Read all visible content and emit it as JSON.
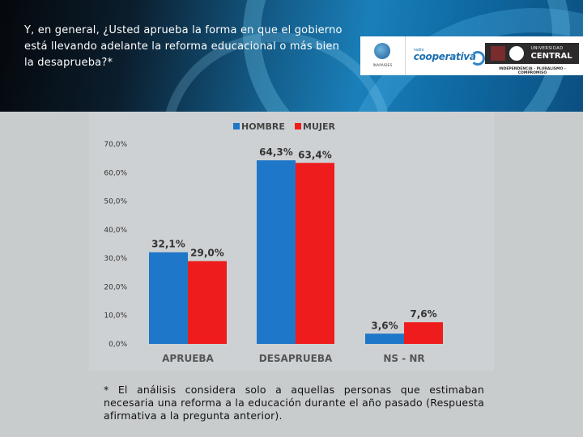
{
  "question": "Y, en general, ¿Usted aprueba la forma en que el gobierno está llevando adelante la reforma educacional o más bien la desaprueba?*",
  "logos": {
    "inapaid_caption": "INAPAIDES",
    "radio_small": "radio",
    "cooperativa": "cooperativa",
    "universidad": "UNIVERSIDAD",
    "central": "CENTRAL",
    "motto": "INDEPENDENCIA - PLURALISMO - COMPROMISO"
  },
  "footnote": "* El análisis considera solo a aquellas personas que estimaban necesaria una reforma a la educación durante el año pasado (Respuesta afirmativa a la pregunta anterior).",
  "colors": {
    "hombre": "#1f77c9",
    "mujer": "#ee1c1c"
  },
  "chart_data": {
    "type": "bar",
    "categories": [
      "APRUEBA",
      "DESAPRUEBA",
      "NS - NR"
    ],
    "series": [
      {
        "name": "HOMBRE",
        "values": [
          32.1,
          64.3,
          3.6
        ],
        "labels": [
          "32,1%",
          "64,3%",
          "3,6%"
        ]
      },
      {
        "name": "MUJER",
        "values": [
          29.0,
          63.4,
          7.6
        ],
        "labels": [
          "29,0%",
          "63,4%",
          "7,6%"
        ]
      }
    ],
    "ylim": [
      0,
      70
    ],
    "yticks": [
      "0,0%",
      "10,0%",
      "20,0%",
      "30,0%",
      "40,0%",
      "50,0%",
      "60,0%",
      "70,0%"
    ],
    "legend": "top-center",
    "grid": false
  }
}
